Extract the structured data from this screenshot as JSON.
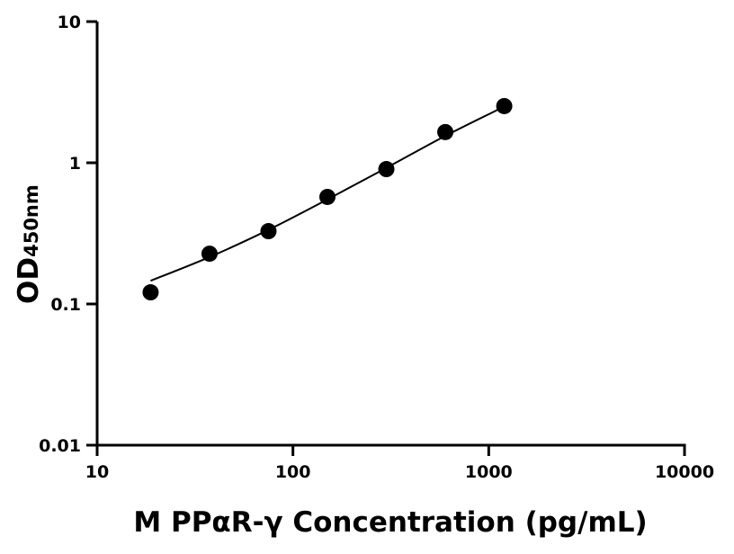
{
  "chart_data": {
    "type": "scatter",
    "title": "",
    "xlabel": "M PPαR-γ Concentration (pg/mL)",
    "ylabel": "OD",
    "ylabel_sub": "450nm",
    "x_scale": "log",
    "y_scale": "log",
    "xlim": [
      10,
      10000
    ],
    "ylim": [
      0.01,
      10
    ],
    "x_ticks": [
      "10",
      "100",
      "1000",
      "10000"
    ],
    "y_ticks": [
      "0.01",
      "0.1",
      "1",
      "10"
    ],
    "grid": false,
    "points": [
      {
        "x": 18.75,
        "y": 0.121
      },
      {
        "x": 37.5,
        "y": 0.227
      },
      {
        "x": 75,
        "y": 0.328
      },
      {
        "x": 150,
        "y": 0.573
      },
      {
        "x": 300,
        "y": 0.902
      },
      {
        "x": 600,
        "y": 1.65
      },
      {
        "x": 1200,
        "y": 2.52
      }
    ],
    "fit_curve": [
      {
        "x": 18.75,
        "y": 0.146
      },
      {
        "x": 37.5,
        "y": 0.215
      },
      {
        "x": 75,
        "y": 0.335
      },
      {
        "x": 150,
        "y": 0.55
      },
      {
        "x": 300,
        "y": 0.92
      },
      {
        "x": 600,
        "y": 1.55
      },
      {
        "x": 1200,
        "y": 2.5
      }
    ],
    "colors": {
      "marker": "#000000",
      "line": "#000000"
    }
  }
}
